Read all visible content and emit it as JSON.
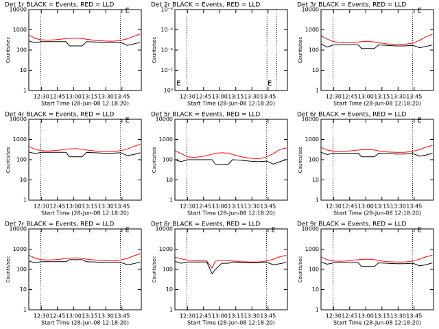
{
  "chart_data": [
    {
      "type": "line",
      "title": "Det 1r BLACK = Events, RED = LLD",
      "xlabel": "Start Time (28-Jun-08 12:18:20)",
      "ylabel": "Counts/sec",
      "log_y": true,
      "ylim": [
        1,
        10000
      ],
      "yticks": [
        1,
        10,
        100,
        1000,
        10000
      ],
      "xlim": [
        18.33,
        123
      ],
      "xticks": [
        {
          "value": 30,
          "label": "12:30"
        },
        {
          "value": 45,
          "label": "12:45"
        },
        {
          "value": 60,
          "label": "13:00"
        },
        {
          "value": 75,
          "label": "13:15"
        },
        {
          "value": 90,
          "label": "13:30"
        },
        {
          "value": 105,
          "label": "13:45"
        }
      ],
      "vlines": [
        29.5,
        103.5
      ],
      "annotations": [
        {
          "text": "E",
          "x": 108,
          "y": 9000
        }
      ],
      "x": [
        18.5,
        24,
        30,
        36,
        42,
        48,
        53,
        56,
        62,
        68,
        72,
        80,
        88,
        96,
        104,
        110,
        116,
        122
      ],
      "series": [
        {
          "color": "#000000",
          "values": [
            280,
            230,
            260,
            260,
            260,
            260,
            260,
            160,
            160,
            160,
            260,
            250,
            240,
            230,
            240,
            170,
            200,
            240
          ]
        },
        {
          "color": "#ff0000",
          "values": [
            550,
            380,
            320,
            310,
            320,
            340,
            370,
            380,
            390,
            370,
            340,
            300,
            280,
            270,
            300,
            360,
            480,
            620
          ]
        }
      ]
    },
    {
      "type": "line",
      "title": "Det 2r BLACK = Events, RED = LLD",
      "xlabel": "Start Time (28-Jun-08 12:18:20)",
      "ylabel": "Counts/sec",
      "log_y": true,
      "ylim": [
        1,
        1e-08
      ],
      "yticks": [
        {
          "value": 1,
          "label": "10⁰"
        },
        {
          "value": 0.01,
          "label": "10⁻²"
        },
        {
          "value": 0.0001,
          "label": "10⁻⁴"
        },
        {
          "value": 1e-06,
          "label": "10⁻⁶"
        },
        {
          "value": 1e-08,
          "label": "10⁻⁸"
        }
      ],
      "xlim": [
        18.33,
        123
      ],
      "xticks": [
        {
          "value": 30,
          "label": "12:30"
        },
        {
          "value": 45,
          "label": "12:45"
        },
        {
          "value": 60,
          "label": "13:00"
        },
        {
          "value": 75,
          "label": "13:15"
        },
        {
          "value": 90,
          "label": "13:30"
        },
        {
          "value": 105,
          "label": "13:45"
        }
      ],
      "vlines": [
        29.5,
        104,
        113
      ],
      "annotations": [
        {
          "text": "E",
          "x": 19.8,
          "y": 0.2
        },
        {
          "text": "E",
          "x": 104.5,
          "y": 0.2
        }
      ],
      "x": [],
      "series": []
    },
    {
      "type": "line",
      "title": "Det 3r BLACK = Events, RED = LLD",
      "xlabel": "Start Time (28-Jun-08 12:18:20)",
      "ylabel": "Counts/sec",
      "log_y": true,
      "ylim": [
        1,
        10000
      ],
      "yticks": [
        1,
        10,
        100,
        1000,
        10000
      ],
      "xlim": [
        18.33,
        123
      ],
      "xticks": [
        {
          "value": 30,
          "label": "12:30"
        },
        {
          "value": 45,
          "label": "12:45"
        },
        {
          "value": 60,
          "label": "13:00"
        },
        {
          "value": 75,
          "label": "13:15"
        },
        {
          "value": 90,
          "label": "13:30"
        },
        {
          "value": 105,
          "label": "13:45"
        }
      ],
      "vlines": [
        29.5,
        103.5
      ],
      "annotations": [
        {
          "text": "E",
          "x": 108,
          "y": 9000
        }
      ],
      "x": [
        18.5,
        24,
        30,
        36,
        42,
        48,
        53,
        56,
        62,
        68,
        72,
        80,
        88,
        96,
        104,
        110,
        116,
        122
      ],
      "series": [
        {
          "color": "#000000",
          "values": [
            200,
            140,
            180,
            180,
            180,
            180,
            180,
            120,
            120,
            120,
            180,
            170,
            160,
            160,
            170,
            130,
            150,
            180
          ]
        },
        {
          "color": "#ff0000",
          "values": [
            500,
            350,
            260,
            240,
            230,
            240,
            250,
            260,
            270,
            250,
            230,
            200,
            190,
            190,
            220,
            300,
            450,
            600
          ]
        }
      ]
    },
    {
      "type": "line",
      "title": "Det 4r BLACK = Events, RED = LLD",
      "xlabel": "Start Time (28-Jun-08 12:18:20)",
      "ylabel": "Counts/sec",
      "log_y": true,
      "ylim": [
        1,
        10000
      ],
      "yticks": [
        1,
        10,
        100,
        1000,
        10000
      ],
      "xlim": [
        18.33,
        123
      ],
      "xticks": [
        {
          "value": 30,
          "label": "12:30"
        },
        {
          "value": 45,
          "label": "12:45"
        },
        {
          "value": 60,
          "label": "13:00"
        },
        {
          "value": 75,
          "label": "13:15"
        },
        {
          "value": 90,
          "label": "13:30"
        },
        {
          "value": 105,
          "label": "13:45"
        }
      ],
      "vlines": [
        29.5,
        103.5
      ],
      "annotations": [
        {
          "text": "E",
          "x": 108,
          "y": 9000
        }
      ],
      "x": [
        18.5,
        24,
        30,
        36,
        42,
        48,
        53,
        56,
        62,
        68,
        72,
        80,
        88,
        96,
        104,
        110,
        116,
        122
      ],
      "series": [
        {
          "color": "#000000",
          "values": [
            240,
            200,
            230,
            230,
            230,
            230,
            230,
            140,
            140,
            140,
            230,
            220,
            210,
            210,
            220,
            160,
            180,
            220
          ]
        },
        {
          "color": "#ff0000",
          "values": [
            450,
            330,
            280,
            270,
            280,
            300,
            330,
            340,
            350,
            330,
            300,
            270,
            250,
            250,
            280,
            340,
            450,
            580
          ]
        }
      ]
    },
    {
      "type": "line",
      "title": "Det 5r BLACK = Events, RED = LLD",
      "xlabel": "Start Time (28-Jun-08 12:18:20)",
      "ylabel": "Counts/sec",
      "log_y": true,
      "ylim": [
        1,
        10000
      ],
      "yticks": [
        1,
        10,
        100,
        1000,
        10000
      ],
      "xlim": [
        18.33,
        123
      ],
      "xticks": [
        {
          "value": 30,
          "label": "12:30"
        },
        {
          "value": 45,
          "label": "12:45"
        },
        {
          "value": 60,
          "label": "13:00"
        },
        {
          "value": 75,
          "label": "13:15"
        },
        {
          "value": 90,
          "label": "13:30"
        },
        {
          "value": 105,
          "label": "13:45"
        }
      ],
      "vlines": [
        29.5,
        103.5
      ],
      "annotations": [],
      "x": [
        18.5,
        24,
        30,
        36,
        42,
        48,
        53,
        56,
        62,
        68,
        72,
        80,
        88,
        96,
        104,
        110,
        116,
        122
      ],
      "series": [
        {
          "color": "#000000",
          "values": [
            100,
            80,
            100,
            100,
            100,
            100,
            100,
            60,
            60,
            60,
            100,
            95,
            85,
            80,
            85,
            60,
            80,
            100
          ]
        },
        {
          "color": "#ff0000",
          "values": [
            280,
            200,
            140,
            130,
            140,
            160,
            190,
            210,
            220,
            210,
            180,
            140,
            120,
            110,
            140,
            200,
            320,
            380
          ]
        }
      ]
    },
    {
      "type": "line",
      "title": "Det 6r BLACK = Events, RED = LLD",
      "xlabel": "Start Time (28-Jun-08 12:18:20)",
      "ylabel": "Counts/sec",
      "log_y": true,
      "ylim": [
        1,
        10000
      ],
      "yticks": [
        1,
        10,
        100,
        1000,
        10000
      ],
      "xlim": [
        18.33,
        123
      ],
      "xticks": [
        {
          "value": 30,
          "label": "12:30"
        },
        {
          "value": 45,
          "label": "12:45"
        },
        {
          "value": 60,
          "label": "13:00"
        },
        {
          "value": 75,
          "label": "13:15"
        },
        {
          "value": 90,
          "label": "13:30"
        },
        {
          "value": 105,
          "label": "13:45"
        }
      ],
      "vlines": [
        29.5,
        103.5
      ],
      "annotations": [
        {
          "text": "E",
          "x": 108,
          "y": 9000
        }
      ],
      "x": [
        18.5,
        24,
        30,
        36,
        42,
        48,
        53,
        56,
        62,
        68,
        72,
        80,
        88,
        96,
        104,
        110,
        116,
        122
      ],
      "series": [
        {
          "color": "#000000",
          "values": [
            230,
            180,
            210,
            210,
            210,
            210,
            210,
            140,
            140,
            140,
            210,
            200,
            190,
            190,
            200,
            150,
            170,
            210
          ]
        },
        {
          "color": "#ff0000",
          "values": [
            400,
            300,
            260,
            250,
            260,
            280,
            300,
            310,
            320,
            300,
            270,
            240,
            230,
            230,
            260,
            320,
            420,
            500
          ]
        }
      ]
    },
    {
      "type": "line",
      "title": "Det 7r BLACK = Events, RED = LLD",
      "xlabel": "Start Time (28-Jun-08 12:18:20)",
      "ylabel": "Counts/sec",
      "log_y": true,
      "ylim": [
        1,
        10000
      ],
      "yticks": [
        1,
        10,
        100,
        1000,
        10000
      ],
      "xlim": [
        18.33,
        123
      ],
      "xticks": [
        {
          "value": 30,
          "label": "12:30"
        },
        {
          "value": 45,
          "label": "12:45"
        },
        {
          "value": 60,
          "label": "13:00"
        },
        {
          "value": 75,
          "label": "13:15"
        },
        {
          "value": 90,
          "label": "13:30"
        },
        {
          "value": 105,
          "label": "13:45"
        }
      ],
      "vlines": [
        29.5,
        103.5
      ],
      "annotations": [
        {
          "text": "E",
          "x": 108,
          "y": 9000
        }
      ],
      "x": [
        18.5,
        24,
        30,
        36,
        42,
        48,
        53,
        56,
        62,
        68,
        72,
        80,
        88,
        96,
        104,
        110,
        116,
        122
      ],
      "series": [
        {
          "color": "#000000",
          "values": [
            260,
            210,
            240,
            240,
            240,
            240,
            240,
            300,
            300,
            300,
            240,
            230,
            220,
            210,
            220,
            170,
            190,
            230
          ]
        },
        {
          "color": "#ff0000",
          "values": [
            500,
            360,
            300,
            290,
            300,
            320,
            350,
            360,
            370,
            350,
            320,
            290,
            270,
            260,
            290,
            350,
            460,
            600
          ]
        }
      ]
    },
    {
      "type": "line",
      "title": "Det 8r BLACK = Events, RED = LLD",
      "xlabel": "Start Time (28-Jun-08 12:18:20)",
      "ylabel": "Counts/sec",
      "log_y": true,
      "ylim": [
        1,
        10000
      ],
      "yticks": [
        1,
        10,
        100,
        1000,
        10000
      ],
      "xlim": [
        18.33,
        123
      ],
      "xticks": [
        {
          "value": 30,
          "label": "12:30"
        },
        {
          "value": 45,
          "label": "12:45"
        },
        {
          "value": 60,
          "label": "13:00"
        },
        {
          "value": 75,
          "label": "13:15"
        },
        {
          "value": 90,
          "label": "13:30"
        },
        {
          "value": 105,
          "label": "13:45"
        }
      ],
      "vlines": [
        29.5,
        103.5
      ],
      "annotations": [
        {
          "text": "E",
          "x": 108,
          "y": 9000
        }
      ],
      "x": [
        18.5,
        24,
        30,
        36,
        42,
        48,
        53,
        56,
        62,
        68,
        72,
        80,
        88,
        96,
        104,
        110,
        116,
        122
      ],
      "series": [
        {
          "color": "#000000",
          "values": [
            250,
            200,
            230,
            230,
            230,
            230,
            60,
            100,
            200,
            200,
            230,
            220,
            210,
            210,
            220,
            170,
            190,
            220
          ]
        },
        {
          "color": "#ff0000",
          "values": [
            400,
            330,
            290,
            280,
            270,
            260,
            120,
            260,
            280,
            270,
            260,
            240,
            230,
            230,
            260,
            320,
            420,
            500
          ]
        }
      ]
    },
    {
      "type": "line",
      "title": "Det 9r BLACK = Events, RED = LLD",
      "xlabel": "Start Time (28-Jun-08 12:18:20)",
      "ylabel": "Counts/sec",
      "log_y": true,
      "ylim": [
        1,
        10000
      ],
      "yticks": [
        1,
        10,
        100,
        1000,
        10000
      ],
      "xlim": [
        18.33,
        123
      ],
      "xticks": [
        {
          "value": 30,
          "label": "12:30"
        },
        {
          "value": 45,
          "label": "12:45"
        },
        {
          "value": 60,
          "label": "13:00"
        },
        {
          "value": 75,
          "label": "13:15"
        },
        {
          "value": 90,
          "label": "13:30"
        },
        {
          "value": 105,
          "label": "13:45"
        }
      ],
      "vlines": [
        29.5,
        103.5
      ],
      "annotations": [
        {
          "text": "E",
          "x": 108,
          "y": 9000
        }
      ],
      "x": [
        18.5,
        24,
        30,
        36,
        42,
        48,
        53,
        56,
        62,
        68,
        72,
        80,
        88,
        96,
        104,
        110,
        116,
        122
      ],
      "series": [
        {
          "color": "#000000",
          "values": [
            230,
            180,
            210,
            210,
            210,
            210,
            210,
            140,
            140,
            140,
            210,
            200,
            190,
            190,
            200,
            150,
            170,
            210
          ]
        },
        {
          "color": "#ff0000",
          "values": [
            400,
            300,
            260,
            250,
            260,
            280,
            300,
            310,
            320,
            300,
            270,
            240,
            230,
            230,
            260,
            320,
            420,
            500
          ]
        }
      ]
    }
  ]
}
